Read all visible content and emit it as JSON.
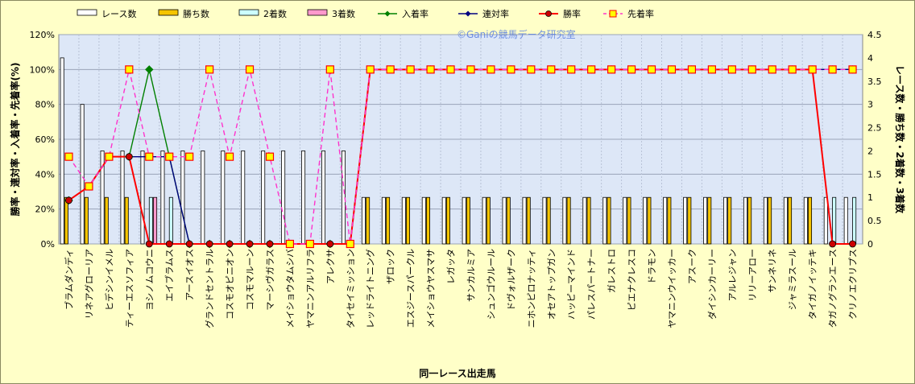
{
  "watermark": "©Ganiの競馬データ研究室",
  "chart_data": {
    "type": "bar",
    "xlabel": "同一レース出走馬",
    "ylabel_left": "勝率・連対率・入着率・先着率(%)",
    "ylabel_right": "レース数・勝ち数・2着数・3着数",
    "ylim_left": [
      0,
      120
    ],
    "ylim_right": [
      0,
      4.5
    ],
    "yticks_left": [
      "0%",
      "20%",
      "40%",
      "60%",
      "80%",
      "100%",
      "120%"
    ],
    "yticks_right": [
      "0",
      "0.5",
      "1",
      "1.5",
      "2",
      "2.5",
      "3",
      "3.5",
      "4",
      "4.5"
    ],
    "grid": true,
    "legend_position": "top",
    "categories": [
      "ブラムダンディ",
      "リネアグローリア",
      "ヒデシンイメル",
      "ティーエスソフィア",
      "ヨシノムコウニ",
      "エイブラムス",
      "アースイオス",
      "グランドセントラル",
      "コスモオピニオン",
      "コスモマルーン",
      "マーシヴガラス",
      "メイショウタムシバ",
      "ヤマニンアルリフラ",
      "アレクサ",
      "タイセイミッション",
      "レッドライトニング",
      "ザロック",
      "エスジースパークル",
      "メイショウヤスマサ",
      "レガッタ",
      "サンカルミア",
      "シュンゴウルール",
      "ドヴォルザーク",
      "ニホンピロナッティ",
      "オセアトップガン",
      "ハッピーマインド",
      "パレスパートナー",
      "ガレストロ",
      "ピエナクレスコ",
      "ドラモン",
      "ヤマニンウイッカー",
      "アスーク",
      "ダイシンカーリー",
      "アルレジャン",
      "リリーアロー",
      "サンネリネ",
      "ジャミラスール",
      "タイガノイッテキ",
      "タガノグランエース",
      "クリノエクリプス"
    ],
    "series": [
      {
        "name": "レース数",
        "kind": "bar",
        "axis": "right",
        "color": "#ffffff",
        "values": [
          4,
          3,
          2,
          2,
          2,
          2,
          2,
          2,
          2,
          2,
          2,
          2,
          2,
          2,
          2,
          1,
          1,
          1,
          1,
          1,
          1,
          1,
          1,
          1,
          1,
          1,
          1,
          1,
          1,
          1,
          1,
          1,
          1,
          1,
          1,
          1,
          1,
          1,
          1,
          1
        ]
      },
      {
        "name": "勝ち数",
        "kind": "bar",
        "axis": "right",
        "color": "#f5c400",
        "values": [
          1,
          1,
          1,
          1,
          0,
          0,
          0,
          0,
          0,
          0,
          0,
          0,
          0,
          0,
          0,
          1,
          1,
          1,
          1,
          1,
          1,
          1,
          1,
          1,
          1,
          1,
          1,
          1,
          1,
          1,
          1,
          1,
          1,
          1,
          1,
          1,
          1,
          1,
          0,
          0
        ]
      },
      {
        "name": "2着数",
        "kind": "bar",
        "axis": "right",
        "color": "#ccffff",
        "values": [
          0,
          0,
          0,
          0,
          1,
          1,
          0,
          0,
          0,
          0,
          0,
          0,
          0,
          0,
          0,
          0,
          0,
          0,
          0,
          0,
          0,
          0,
          0,
          0,
          0,
          0,
          0,
          0,
          0,
          0,
          0,
          0,
          0,
          0,
          0,
          0,
          0,
          0,
          1,
          1
        ]
      },
      {
        "name": "3着数",
        "kind": "bar",
        "axis": "right",
        "color": "#ff99cc",
        "values": [
          0,
          0,
          0,
          0,
          1,
          0,
          0,
          0,
          0,
          0,
          0,
          0,
          0,
          0,
          0,
          0,
          0,
          0,
          0,
          0,
          0,
          0,
          0,
          0,
          0,
          0,
          0,
          0,
          0,
          0,
          0,
          0,
          0,
          0,
          0,
          0,
          0,
          0,
          0,
          0
        ]
      },
      {
        "name": "入着率",
        "kind": "line",
        "axis": "left",
        "color": "#008000",
        "marker": "diamond",
        "values": [
          25,
          33,
          50,
          50,
          100,
          50,
          0,
          0,
          0,
          0,
          0,
          0,
          0,
          0,
          0,
          100,
          100,
          100,
          100,
          100,
          100,
          100,
          100,
          100,
          100,
          100,
          100,
          100,
          100,
          100,
          100,
          100,
          100,
          100,
          100,
          100,
          100,
          100,
          100,
          100
        ]
      },
      {
        "name": "連対率",
        "kind": "line",
        "axis": "left",
        "color": "#000080",
        "marker": "diamond",
        "values": [
          25,
          33,
          50,
          50,
          50,
          50,
          0,
          0,
          0,
          0,
          0,
          0,
          0,
          0,
          0,
          100,
          100,
          100,
          100,
          100,
          100,
          100,
          100,
          100,
          100,
          100,
          100,
          100,
          100,
          100,
          100,
          100,
          100,
          100,
          100,
          100,
          100,
          100,
          100,
          100
        ]
      },
      {
        "name": "勝率",
        "kind": "line",
        "axis": "left",
        "color": "#ff0000",
        "marker": "circle",
        "values": [
          25,
          33,
          50,
          50,
          0,
          0,
          0,
          0,
          0,
          0,
          0,
          0,
          0,
          0,
          0,
          100,
          100,
          100,
          100,
          100,
          100,
          100,
          100,
          100,
          100,
          100,
          100,
          100,
          100,
          100,
          100,
          100,
          100,
          100,
          100,
          100,
          100,
          100,
          0,
          0
        ]
      },
      {
        "name": "先着率",
        "kind": "line",
        "axis": "left",
        "color": "#ff33cc",
        "marker": "square",
        "dashed": true,
        "values": [
          50,
          33,
          50,
          100,
          50,
          50,
          50,
          100,
          50,
          100,
          50,
          0,
          0,
          100,
          0,
          100,
          100,
          100,
          100,
          100,
          100,
          100,
          100,
          100,
          100,
          100,
          100,
          100,
          100,
          100,
          100,
          100,
          100,
          100,
          100,
          100,
          100,
          100,
          100,
          100
        ]
      }
    ]
  }
}
